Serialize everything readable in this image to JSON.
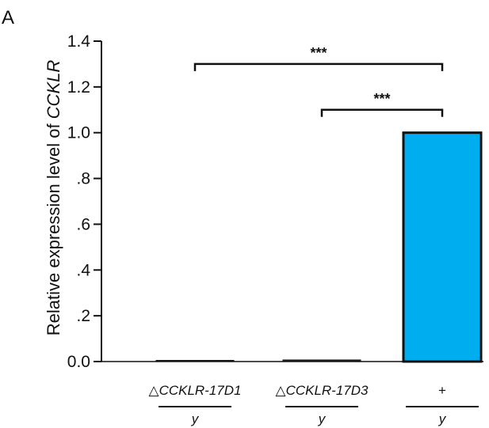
{
  "panel_label": "A",
  "ylabel_prefix": "Relative expression level of ",
  "ylabel_gene": "CCKLR",
  "chart_data": {
    "type": "bar",
    "categories": [
      "△CCKLR-17D1 / y",
      "△CCKLR-17D3 / y",
      "+ / y"
    ],
    "category_labels": [
      {
        "symbol": "△",
        "top": "CCKLR-17D1",
        "bottom": "y"
      },
      {
        "symbol": "△",
        "top": "CCKLR-17D3",
        "bottom": "y"
      },
      {
        "symbol": "",
        "top": "+",
        "bottom": "y"
      }
    ],
    "values": [
      0.002,
      0.007,
      1.0
    ],
    "bar_colors": [
      "#1e1e1e",
      "#1e1e1e",
      "#00aeef"
    ],
    "ylabel": "Relative expression level of CCKLR",
    "xlabel": "",
    "ylim": [
      0,
      1.4
    ],
    "yticks": [
      0,
      0.2,
      0.4,
      0.6,
      0.8,
      1.0,
      1.2,
      1.4
    ],
    "ytick_labels": [
      "0.0",
      ".2",
      ".4",
      ".6",
      ".8",
      "1.0",
      "1.2",
      "1.4"
    ],
    "grid": false,
    "significance": [
      {
        "from": 0,
        "to": 2,
        "label": "***",
        "level": 1.3
      },
      {
        "from": 1,
        "to": 2,
        "label": "***",
        "level": 1.1
      }
    ]
  }
}
